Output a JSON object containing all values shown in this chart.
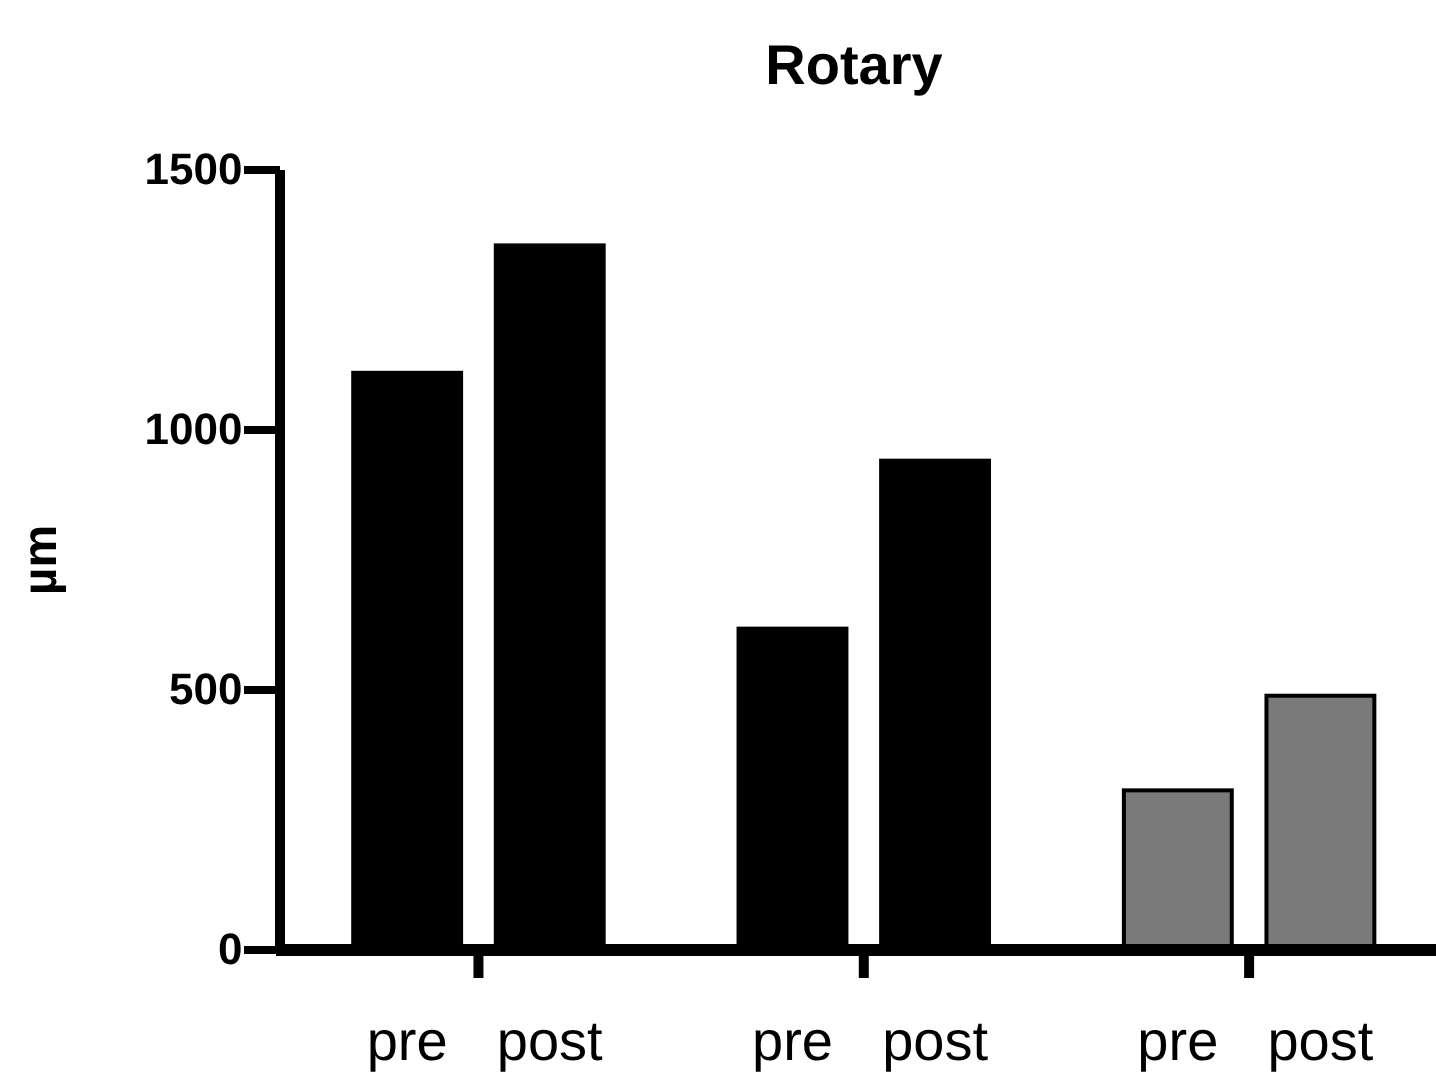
{
  "chart_data": {
    "type": "bar",
    "title": "Rotary",
    "ylabel": "µm",
    "categories": [
      "pre",
      "post",
      "pre",
      "post",
      "pre",
      "post"
    ],
    "values": [
      1110,
      1355,
      618,
      941,
      307,
      489
    ],
    "colors": [
      "#000000",
      "#000000",
      "#000000",
      "#000000",
      "#7a7a7a",
      "#7a7a7a"
    ],
    "ylim": [
      0,
      1500
    ],
    "yticks": [
      0,
      500,
      1000,
      1500
    ],
    "grid": false
  }
}
